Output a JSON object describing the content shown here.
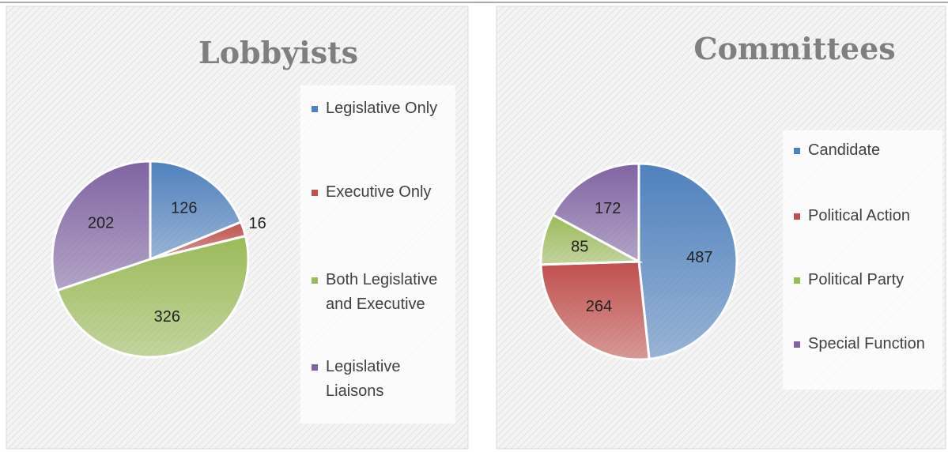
{
  "chart_data": [
    {
      "type": "pie",
      "title": "Lobbyists",
      "categories": [
        "Legislative Only",
        "Executive Only",
        "Both Legislative and Executive",
        "Legislative Liaisons"
      ],
      "values": [
        126,
        16,
        326,
        202
      ],
      "colors": [
        "#4f81bd",
        "#c0504d",
        "#9bbb59",
        "#8064a2"
      ]
    },
    {
      "type": "pie",
      "title": "Committees",
      "categories": [
        "Candidate",
        "Political Action",
        "Political Party",
        "Special Function"
      ],
      "values": [
        487,
        264,
        85,
        172
      ],
      "colors": [
        "#4f81bd",
        "#c0504d",
        "#9bbb59",
        "#8064a2"
      ]
    }
  ]
}
